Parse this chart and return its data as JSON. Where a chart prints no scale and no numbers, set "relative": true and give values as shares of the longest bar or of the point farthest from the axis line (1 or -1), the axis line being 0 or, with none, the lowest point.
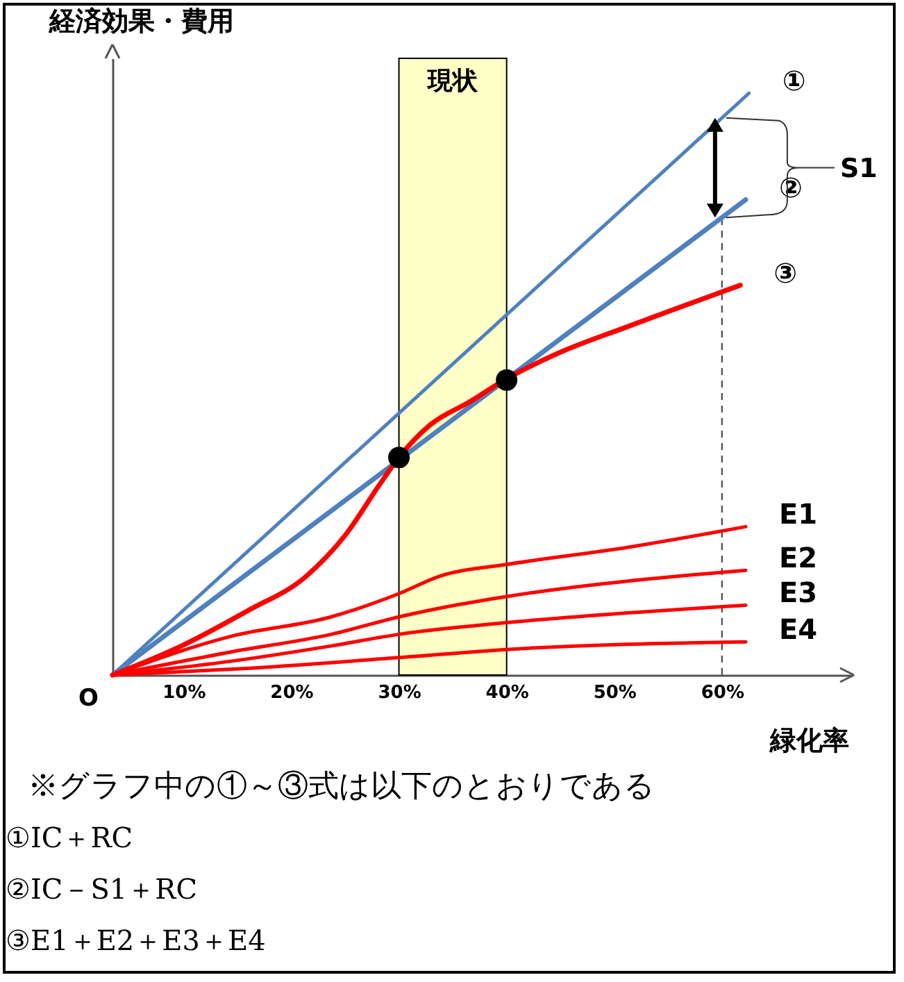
{
  "chart_data": {
    "type": "line",
    "relative": true,
    "xlabel": "緑化率",
    "ylabel": "経済効果・費用",
    "xlim": [
      3.4,
      72
    ],
    "xticks": [
      {
        "value": 10,
        "label": "10%"
      },
      {
        "value": 20,
        "label": "20%"
      },
      {
        "value": 30,
        "label": "30%"
      },
      {
        "value": 40,
        "label": "40%"
      },
      {
        "value": 50,
        "label": "50%"
      },
      {
        "value": 60,
        "label": "60%"
      }
    ],
    "series": [
      {
        "name": "①",
        "color": "#4f81bd",
        "x": [
          3.4,
          62.5
        ],
        "values": [
          0,
          1
        ]
      },
      {
        "name": "②",
        "color": "#4f81bd",
        "x": [
          3.4,
          62.2
        ],
        "values": [
          0,
          0.817
        ]
      },
      {
        "name": "③",
        "color": "#ff0000",
        "x": [
          3.4,
          9.8,
          15.9,
          21.4,
          25,
          28.3,
          30,
          32.9,
          36.6,
          39.8,
          44.4,
          51.4,
          61.7
        ],
        "values": [
          0,
          0.05,
          0.11,
          0.17,
          0.24,
          0.33,
          0.374,
          0.43,
          0.47,
          0.507,
          0.55,
          0.6,
          0.67
        ]
      },
      {
        "name": "E1",
        "color": "#ff0000",
        "x": [
          3.4,
          14.5,
          23.7,
          30,
          33.8,
          40,
          51.4,
          62.2
        ],
        "values": [
          0,
          0.067,
          0.1,
          0.14,
          0.17,
          0.19,
          0.22,
          0.255
        ]
      },
      {
        "name": "E2",
        "color": "#ff0000",
        "x": [
          3.4,
          14.5,
          23.7,
          30,
          35.2,
          40,
          62.2
        ],
        "values": [
          0,
          0.04,
          0.07,
          0.1,
          0.12,
          0.135,
          0.18
        ]
      },
      {
        "name": "E3",
        "color": "#ff0000",
        "x": [
          3.4,
          14.5,
          23.7,
          30,
          40,
          62.2
        ],
        "values": [
          0,
          0.024,
          0.05,
          0.07,
          0.09,
          0.12
        ]
      },
      {
        "name": "E4",
        "color": "#ff0000",
        "x": [
          3.4,
          14.5,
          30,
          40,
          62.2
        ],
        "values": [
          0,
          0.01,
          0.03,
          0.044,
          0.057
        ]
      },
      {
        "type": "scatter",
        "color": "#000000",
        "x": [
          30,
          40
        ],
        "values": [
          0.374,
          0.507
        ]
      }
    ],
    "bands": [
      {
        "axis": "x",
        "from": 30,
        "to": 40,
        "label": "現状",
        "color": "#ffffc8"
      }
    ],
    "ref_lines": [
      {
        "axis": "x",
        "value": 60,
        "line_style": "dashed",
        "color": "#555555"
      }
    ],
    "annotations": [
      "O",
      "S1",
      "※グラフ中の①～③式は以下のとおりである",
      "①IC＋RC",
      "②IC－S1＋RC",
      "③E1＋E2＋E3＋E4"
    ]
  }
}
